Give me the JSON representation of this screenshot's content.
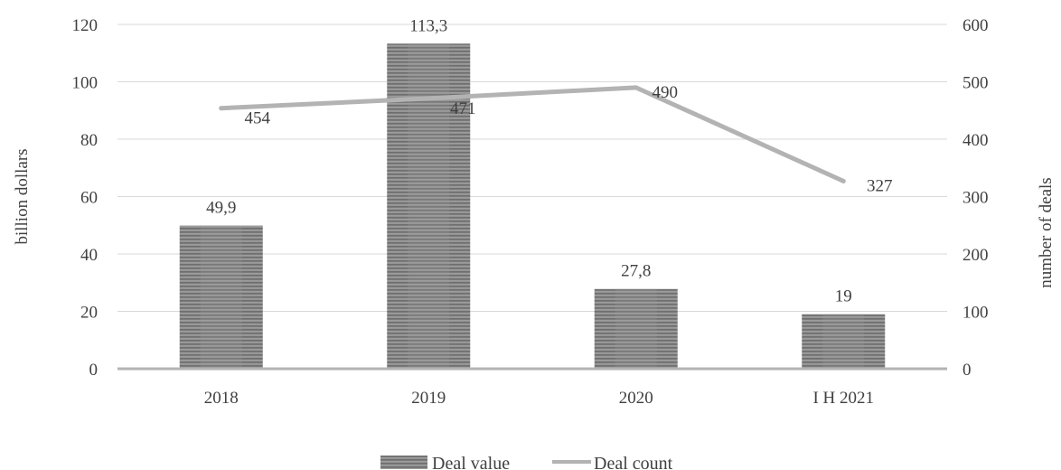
{
  "chart_data": {
    "type": "bar",
    "categories": [
      "2018",
      "2019",
      "2020",
      "I H 2021"
    ],
    "series": [
      {
        "name": "Deal value",
        "type": "bar",
        "axis": "left",
        "values": [
          49.9,
          113.3,
          27.8,
          19
        ],
        "labels": [
          "49,9",
          "113,3",
          "27,8",
          "19"
        ],
        "color": "#8c8c8c"
      },
      {
        "name": "Deal count",
        "type": "line",
        "axis": "right",
        "values": [
          454,
          471,
          490,
          327
        ],
        "labels": [
          "454",
          "471",
          "490",
          "327"
        ],
        "color": "#b3b3b3"
      }
    ],
    "ylabel": "billion dollars",
    "y2label": "number of deals",
    "ylim": [
      0,
      120
    ],
    "y2lim": [
      0,
      600
    ],
    "yticks": [
      0,
      20,
      40,
      60,
      80,
      100,
      120
    ],
    "y2ticks": [
      0,
      100,
      200,
      300,
      400,
      500,
      600
    ],
    "grid": true,
    "legend_position": "bottom"
  }
}
